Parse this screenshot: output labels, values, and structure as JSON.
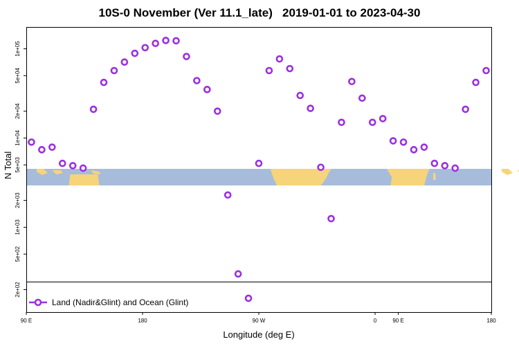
{
  "chart_data": {
    "type": "scatter",
    "title": "10S-0 November (Ver 11.1_late)   2019-01-01 to 2023-04-30",
    "xlabel": "Longitude (deg E)",
    "ylabel": "N Total",
    "x_scale": "longitude, 90 E to 180 (wrapping through 180 and 0)",
    "y_scale": "log",
    "xlim": [
      "90 E",
      "180"
    ],
    "x_ticks": [
      "90 E",
      "180",
      "90 W",
      "0",
      "90 E",
      "180"
    ],
    "y_ticks": [
      "1e+05",
      "5e+04",
      "2e+04",
      "1e+04",
      "5e+03",
      "2e+03",
      "1e+03",
      "5e+02",
      "2e+02"
    ],
    "grid": false,
    "legend_position": "bottom-left",
    "color": "#9b30e0",
    "map_ocean_color": "#a7bcda",
    "map_land_color": "#f6d47a",
    "series": [
      {
        "name": "Land (Nadir&Glint) and Ocean (Glint)",
        "points": [
          {
            "lon": 95,
            "n": 9000
          },
          {
            "lon": 105,
            "n": 7400
          },
          {
            "lon": 115,
            "n": 7900
          },
          {
            "lon": 125,
            "n": 5200
          },
          {
            "lon": 135,
            "n": 4900
          },
          {
            "lon": 145,
            "n": 4600
          },
          {
            "lon": 155,
            "n": 21000
          },
          {
            "lon": 165,
            "n": 42000
          },
          {
            "lon": 175,
            "n": 57000
          },
          {
            "lon": -175,
            "n": 71000
          },
          {
            "lon": -165,
            "n": 89000
          },
          {
            "lon": -155,
            "n": 103000
          },
          {
            "lon": -145,
            "n": 115000
          },
          {
            "lon": -135,
            "n": 124000
          },
          {
            "lon": -125,
            "n": 123000
          },
          {
            "lon": -115,
            "n": 82000
          },
          {
            "lon": -105,
            "n": 44000
          },
          {
            "lon": -95,
            "n": 35000
          },
          {
            "lon": -85,
            "n": 20000
          },
          {
            "lon": -75,
            "n": 2300
          },
          {
            "lon": -65,
            "n": 300
          },
          {
            "lon": -55,
            "n": 160
          },
          {
            "lon": -45,
            "n": 5200
          },
          {
            "lon": -35,
            "n": 57000
          },
          {
            "lon": -25,
            "n": 77000
          },
          {
            "lon": -15,
            "n": 60000
          },
          {
            "lon": -5,
            "n": 30000
          },
          {
            "lon": 5,
            "n": 21500
          },
          {
            "lon": 15,
            "n": 4700
          },
          {
            "lon": 25,
            "n": 1250
          },
          {
            "lon": 35,
            "n": 15000
          },
          {
            "lon": 45,
            "n": 43000
          },
          {
            "lon": 55,
            "n": 28000
          },
          {
            "lon": 65,
            "n": 15000
          },
          {
            "lon": 75,
            "n": 16500
          },
          {
            "lon": 85,
            "n": 9300
          },
          {
            "lon": 95,
            "n": 9000
          },
          {
            "lon": 105,
            "n": 7400
          },
          {
            "lon": 115,
            "n": 7900
          },
          {
            "lon": 125,
            "n": 5200
          },
          {
            "lon": 135,
            "n": 4900
          },
          {
            "lon": 145,
            "n": 4600
          },
          {
            "lon": 155,
            "n": 21000
          },
          {
            "lon": 165,
            "n": 42000
          },
          {
            "lon": 175,
            "n": 57000
          }
        ]
      }
    ]
  }
}
